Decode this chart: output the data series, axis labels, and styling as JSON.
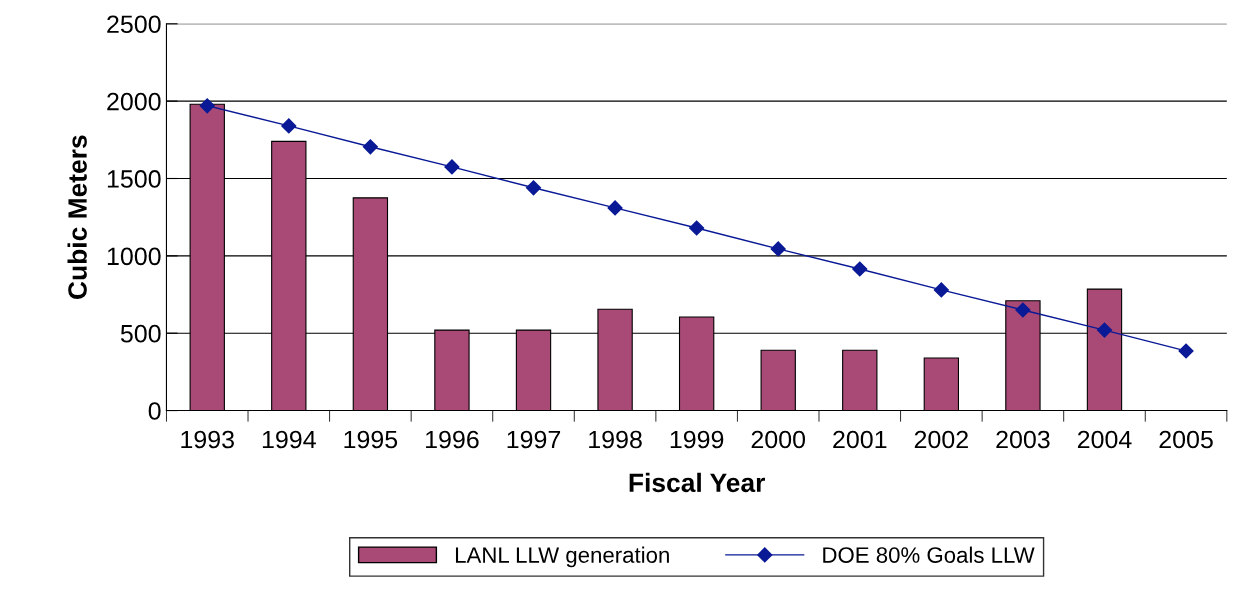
{
  "chart_data": {
    "type": "bar",
    "xlabel": "Fiscal Year",
    "ylabel": "Cubic Meters",
    "categories": [
      "1993",
      "1994",
      "1995",
      "1996",
      "1997",
      "1998",
      "1999",
      "2000",
      "2001",
      "2002",
      "2003",
      "2004",
      "2005"
    ],
    "series": [
      {
        "name": "LANL LLW generation",
        "color": "#a94a76",
        "values": [
          1980,
          1740,
          1375,
          520,
          520,
          655,
          605,
          390,
          390,
          340,
          710,
          785,
          null
        ]
      },
      {
        "name": "DOE 80% Goals LLW",
        "type": "line",
        "color": "#0a1a96",
        "marker": "diamond",
        "values": [
          1970,
          1840,
          1705,
          1575,
          1440,
          1310,
          1180,
          1045,
          915,
          780,
          650,
          520,
          385
        ]
      }
    ],
    "ylim": [
      0,
      2500
    ],
    "yticks": [
      0,
      500,
      1000,
      1500,
      2000,
      2500
    ],
    "grid": "y",
    "legend": "bottom"
  }
}
